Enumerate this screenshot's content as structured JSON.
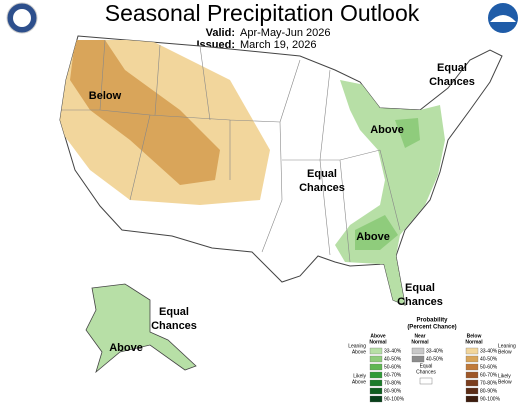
{
  "header": {
    "title": "Seasonal Precipitation Outlook",
    "valid_label": "Valid:",
    "valid": "Apr-May-Jun 2026",
    "issued_label": "Issued:",
    "issued": "March 19, 2026"
  },
  "map": {
    "labels": [
      {
        "lines": [
          "Below"
        ]
      },
      {
        "lines": [
          "Above"
        ]
      },
      {
        "lines": [
          "Equal",
          "Chances"
        ]
      },
      {
        "lines": [
          "Equal",
          "Chances"
        ]
      },
      {
        "lines": [
          "Above"
        ]
      },
      {
        "lines": [
          "Equal",
          "Chances"
        ]
      },
      {
        "lines": [
          "Equal",
          "Chances"
        ]
      },
      {
        "lines": [
          "Above"
        ]
      }
    ]
  },
  "legend": {
    "title": "Probability",
    "subtitle": "(Percent Chance)",
    "above": {
      "heading": [
        "Above",
        "Normal"
      ],
      "leaning": [
        "Leaning",
        "Above"
      ],
      "likely": [
        "Likely",
        "Above"
      ],
      "colors": [
        "#b7dfa6",
        "#8fcc7c",
        "#5fb653",
        "#2f9a37",
        "#1c7b2a",
        "#0f5e1f",
        "#08401a"
      ],
      "ranges": [
        "33-40%",
        "40-50%",
        "50-60%",
        "60-70%",
        "70-80%",
        "80-90%",
        "90-100%"
      ]
    },
    "near": {
      "heading": [
        "Near",
        "Normal"
      ],
      "colors": [
        "#c8c8c8",
        "#8c8c8c"
      ],
      "ranges": [
        "33-40%",
        "40-50%"
      ]
    },
    "below": {
      "heading": [
        "Below",
        "Normal"
      ],
      "leaning": [
        "Leaning",
        "Below"
      ],
      "likely": [
        "Likely",
        "Below"
      ],
      "colors": [
        "#f2d69c",
        "#d9a55a",
        "#c07a3a",
        "#9e5728",
        "#7b3e1e",
        "#5b2b15",
        "#3d1c0d"
      ],
      "ranges": [
        "33-40%",
        "40-50%",
        "50-60%",
        "60-70%",
        "70-80%",
        "80-90%",
        "90-100%"
      ]
    },
    "equal": [
      "Equal",
      "Chances"
    ]
  }
}
